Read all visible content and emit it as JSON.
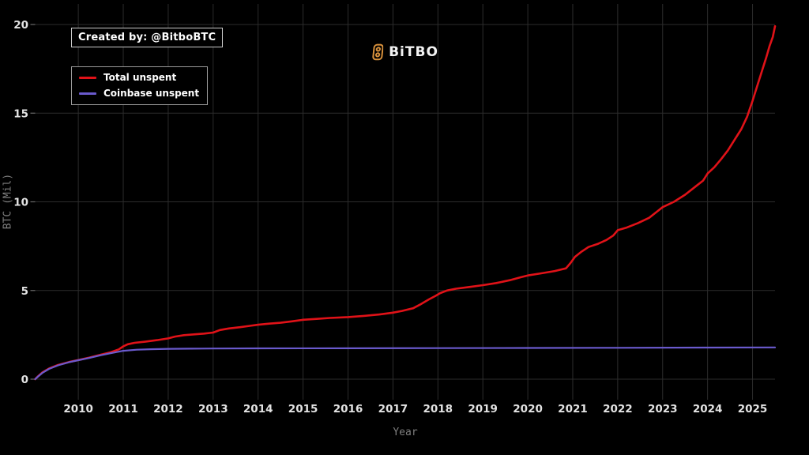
{
  "watermark": {
    "created_by": "Created by: @BitboBTC"
  },
  "brand": {
    "name": "BiTBO",
    "icon": "bitbo-bitcoin-icon",
    "icon_color": "#d8913c"
  },
  "legend": {
    "items": [
      {
        "label": "Total unspent",
        "color": "#e01218"
      },
      {
        "label": "Coinbase unspent",
        "color": "#6a5acd"
      }
    ]
  },
  "chart_data": {
    "type": "line",
    "title": "",
    "xlabel": "Year",
    "ylabel": "BTC (Mil)",
    "xlim": [
      2009.04,
      2025.5
    ],
    "ylim": [
      0,
      20
    ],
    "x_ticks": [
      2010,
      2011,
      2012,
      2013,
      2014,
      2015,
      2016,
      2017,
      2018,
      2019,
      2020,
      2021,
      2022,
      2023,
      2024,
      2025
    ],
    "y_ticks": [
      0,
      5,
      10,
      15,
      20
    ],
    "grid": true,
    "background": "#000000",
    "grid_color": "#2c2c2c",
    "tick_label_color": "#e3e3e3",
    "legend_position": "upper-left",
    "series": [
      {
        "name": "Total unspent",
        "color": "#e01218",
        "width": 2.6,
        "points": [
          [
            2009.04,
            0
          ],
          [
            2009.1,
            0.15
          ],
          [
            2009.2,
            0.38
          ],
          [
            2009.35,
            0.6
          ],
          [
            2009.55,
            0.8
          ],
          [
            2009.8,
            0.97
          ],
          [
            2010.0,
            1.08
          ],
          [
            2010.25,
            1.22
          ],
          [
            2010.5,
            1.38
          ],
          [
            2010.7,
            1.5
          ],
          [
            2010.9,
            1.68
          ],
          [
            2011.0,
            1.85
          ],
          [
            2011.1,
            1.97
          ],
          [
            2011.25,
            2.05
          ],
          [
            2011.5,
            2.12
          ],
          [
            2011.75,
            2.2
          ],
          [
            2012.0,
            2.3
          ],
          [
            2012.15,
            2.4
          ],
          [
            2012.35,
            2.48
          ],
          [
            2012.6,
            2.53
          ],
          [
            2012.8,
            2.57
          ],
          [
            2013.0,
            2.63
          ],
          [
            2013.15,
            2.77
          ],
          [
            2013.35,
            2.86
          ],
          [
            2013.6,
            2.93
          ],
          [
            2013.8,
            3.0
          ],
          [
            2014.0,
            3.07
          ],
          [
            2014.25,
            3.13
          ],
          [
            2014.5,
            3.18
          ],
          [
            2014.75,
            3.26
          ],
          [
            2015.0,
            3.35
          ],
          [
            2015.3,
            3.4
          ],
          [
            2015.6,
            3.45
          ],
          [
            2016.0,
            3.5
          ],
          [
            2016.35,
            3.57
          ],
          [
            2016.7,
            3.65
          ],
          [
            2017.0,
            3.75
          ],
          [
            2017.2,
            3.85
          ],
          [
            2017.45,
            4.0
          ],
          [
            2017.6,
            4.2
          ],
          [
            2017.8,
            4.5
          ],
          [
            2017.95,
            4.7
          ],
          [
            2018.05,
            4.85
          ],
          [
            2018.2,
            5.0
          ],
          [
            2018.4,
            5.1
          ],
          [
            2018.7,
            5.2
          ],
          [
            2019.0,
            5.3
          ],
          [
            2019.3,
            5.42
          ],
          [
            2019.6,
            5.58
          ],
          [
            2019.85,
            5.75
          ],
          [
            2020.0,
            5.85
          ],
          [
            2020.3,
            5.97
          ],
          [
            2020.6,
            6.1
          ],
          [
            2020.85,
            6.25
          ],
          [
            2020.95,
            6.55
          ],
          [
            2021.05,
            6.9
          ],
          [
            2021.2,
            7.2
          ],
          [
            2021.35,
            7.45
          ],
          [
            2021.55,
            7.62
          ],
          [
            2021.75,
            7.85
          ],
          [
            2021.9,
            8.1
          ],
          [
            2022.0,
            8.4
          ],
          [
            2022.2,
            8.55
          ],
          [
            2022.45,
            8.8
          ],
          [
            2022.7,
            9.1
          ],
          [
            2022.85,
            9.4
          ],
          [
            2023.0,
            9.7
          ],
          [
            2023.25,
            10.0
          ],
          [
            2023.5,
            10.4
          ],
          [
            2023.75,
            10.9
          ],
          [
            2023.9,
            11.2
          ],
          [
            2024.0,
            11.6
          ],
          [
            2024.15,
            11.95
          ],
          [
            2024.3,
            12.4
          ],
          [
            2024.45,
            12.9
          ],
          [
            2024.6,
            13.5
          ],
          [
            2024.75,
            14.1
          ],
          [
            2024.88,
            14.8
          ],
          [
            2025.0,
            15.7
          ],
          [
            2025.1,
            16.5
          ],
          [
            2025.2,
            17.3
          ],
          [
            2025.3,
            18.1
          ],
          [
            2025.38,
            18.8
          ],
          [
            2025.45,
            19.3
          ],
          [
            2025.5,
            19.9
          ]
        ]
      },
      {
        "name": "Coinbase unspent",
        "color": "#6a5acd",
        "width": 2.2,
        "points": [
          [
            2009.04,
            0
          ],
          [
            2009.1,
            0.14
          ],
          [
            2009.2,
            0.35
          ],
          [
            2009.35,
            0.58
          ],
          [
            2009.55,
            0.78
          ],
          [
            2009.8,
            0.96
          ],
          [
            2010.0,
            1.07
          ],
          [
            2010.25,
            1.2
          ],
          [
            2010.5,
            1.35
          ],
          [
            2010.75,
            1.48
          ],
          [
            2011.0,
            1.6
          ],
          [
            2011.3,
            1.66
          ],
          [
            2011.6,
            1.69
          ],
          [
            2012.0,
            1.71
          ],
          [
            2012.5,
            1.72
          ],
          [
            2013.0,
            1.73
          ],
          [
            2014.0,
            1.735
          ],
          [
            2016.0,
            1.74
          ],
          [
            2018.0,
            1.75
          ],
          [
            2020.0,
            1.76
          ],
          [
            2022.0,
            1.77
          ],
          [
            2024.0,
            1.78
          ],
          [
            2025.5,
            1.79
          ]
        ]
      }
    ]
  }
}
